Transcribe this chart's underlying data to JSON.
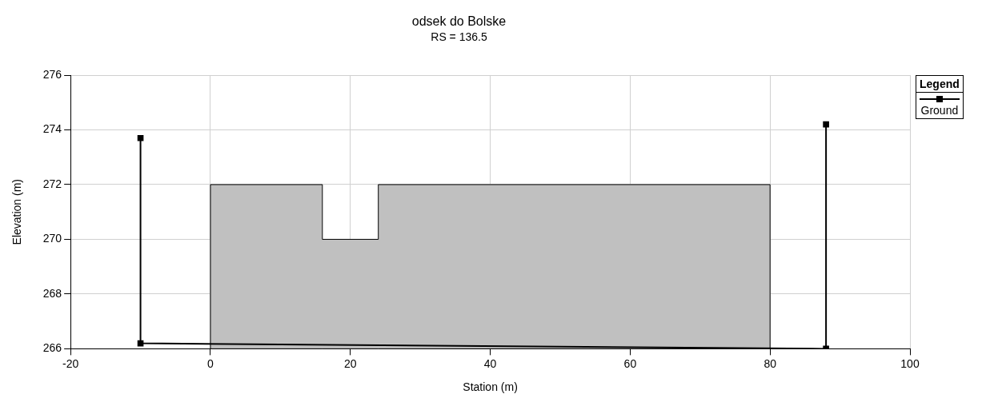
{
  "chart_data": {
    "type": "line",
    "title": "odsek do Bolske",
    "subtitle": "RS = 136.5",
    "xlabel": "Station (m)",
    "ylabel": "Elevation (m)",
    "legend_title": "Legend",
    "xlim": [
      -20,
      100
    ],
    "xticks": [
      -20,
      0,
      20,
      40,
      60,
      80,
      100
    ],
    "ylim": [
      266,
      276
    ],
    "yticks": [
      266,
      268,
      270,
      272,
      274,
      276
    ],
    "grid": true,
    "legend": "right",
    "series": [
      {
        "type": "area",
        "color": "#c0c0c0",
        "x": [
          0,
          16,
          16,
          24,
          24,
          80
        ],
        "values": [
          272,
          272,
          270,
          270,
          272,
          272
        ]
      },
      {
        "marker": "square",
        "name": "Ground",
        "color": "#000000",
        "x": [
          -10,
          -10,
          88,
          88
        ],
        "values": [
          273.7,
          266.2,
          266.0,
          274.2
        ]
      }
    ]
  }
}
